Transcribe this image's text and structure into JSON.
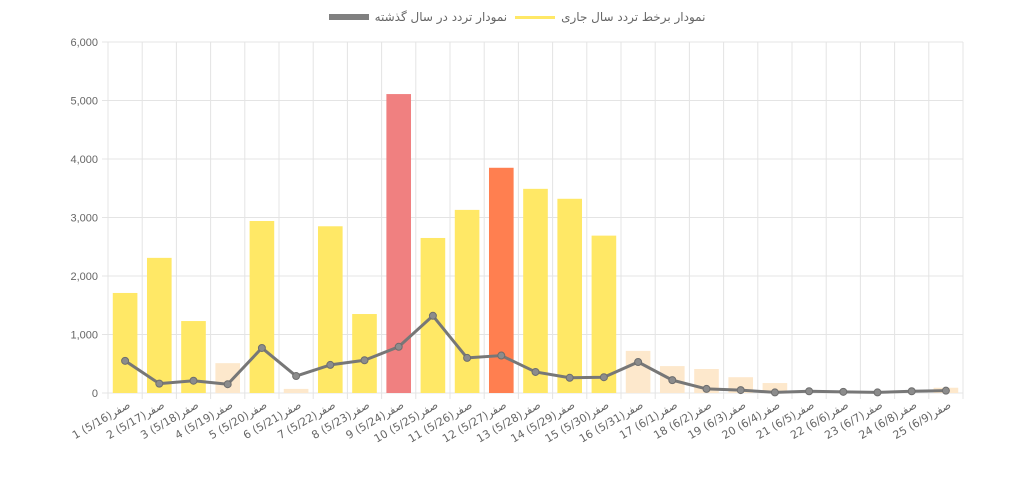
{
  "chart_data": {
    "type": "bar",
    "title": "",
    "xlabel": "",
    "ylabel": "",
    "ylim": [
      0,
      6000
    ],
    "y_ticks": [
      "0",
      "1,000",
      "2,000",
      "3,000",
      "4,000",
      "5,000",
      "6,000"
    ],
    "grid": true,
    "legend_position": "top",
    "categories": [
      "1 صفر(5/16)",
      "2 صفر(5/17)",
      "3 صفر(5/18)",
      "4 صفر(5/19)",
      "5 صفر(5/20)",
      "6 صفر(5/21)",
      "7 صفر(5/22)",
      "8 صفر(5/23)",
      "9 صفر(5/24)",
      "10 صفر(5/25)",
      "11 صفر(5/26)",
      "12 صفر(5/27)",
      "13 صفر(5/28)",
      "14 صفر(5/29)",
      "15 صفر(5/30)",
      "16 صفر(5/31)",
      "17 صفر(6/1)",
      "18 صفر(6/2)",
      "19 صفر(6/3)",
      "20 صفر(6/4)",
      "21 صفر(6/5)",
      "22 صفر(6/6)",
      "23 صفر(6/7)",
      "24 صفر(6/8)",
      "25 صفر(6/9)"
    ],
    "series": [
      {
        "name": "نمودار برخط تردد سال جاری",
        "type": "bar",
        "values": [
          1710,
          2310,
          1230,
          510,
          2940,
          70,
          2850,
          1350,
          5110,
          2650,
          3130,
          3850,
          3490,
          3320,
          2690,
          720,
          460,
          410,
          270,
          170,
          0,
          0,
          0,
          0,
          90
        ],
        "colors": [
          "#ffe866",
          "#ffe866",
          "#ffe866",
          "#fde8cc",
          "#ffe866",
          "#fde8cc",
          "#ffe866",
          "#ffe866",
          "#f08080",
          "#ffe866",
          "#ffe866",
          "#ff7f50",
          "#ffe866",
          "#ffe866",
          "#ffe866",
          "#fde8cc",
          "#fde8cc",
          "#fde8cc",
          "#fde8cc",
          "#fde8cc",
          "#fde8cc",
          "#fde8cc",
          "#fde8cc",
          "#fde8cc",
          "#fde8cc"
        ]
      },
      {
        "name": "نمودار تردد در سال گذشته",
        "type": "line",
        "color": "#777777",
        "values": [
          550,
          160,
          210,
          150,
          770,
          290,
          480,
          560,
          790,
          1320,
          600,
          640,
          360,
          260,
          270,
          530,
          220,
          70,
          50,
          10,
          30,
          20,
          10,
          30,
          40
        ]
      }
    ]
  },
  "legend": {
    "current_year": {
      "label": "نمودار برخط تردد سال جاری",
      "color": "#ffe866"
    },
    "last_year": {
      "label": "نمودار تردد در سال گذشته",
      "color": "#808080"
    }
  },
  "colors": {
    "grid": "#e4e4e4",
    "axis_text": "#666666",
    "bar_normal": "#ffe866",
    "bar_low": "#fde8cc",
    "bar_high": "#f08080",
    "bar_mid_high": "#ff7f50",
    "line": "#777777"
  }
}
